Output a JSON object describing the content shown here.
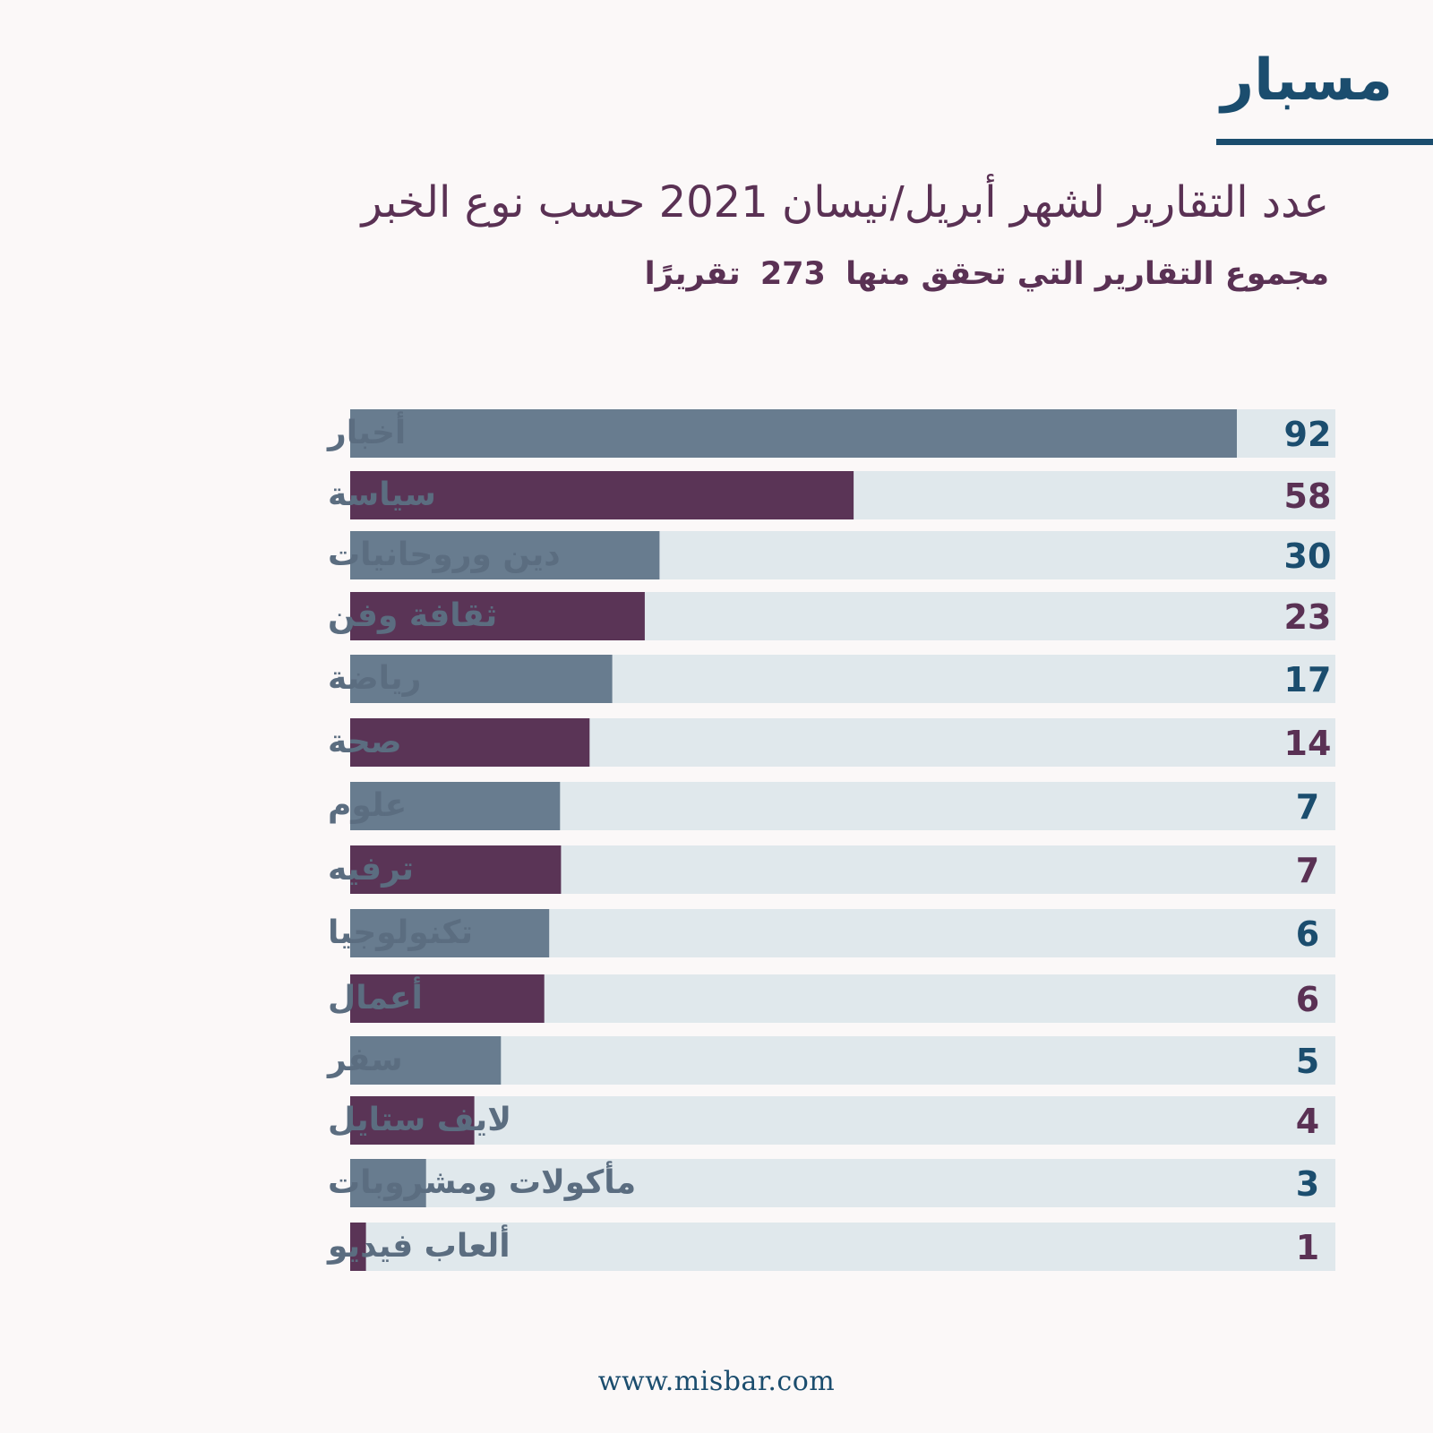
{
  "brand": {
    "logo_text": "مسبار",
    "color": "#1b4d6e"
  },
  "header": {
    "title": "عدد التقارير لشهر أبريل/نيسان 2021 حسب نوع الخبر",
    "subtitle_prefix": "مجموع التقارير التي تحقق منها",
    "subtitle_total": "273",
    "subtitle_suffix": "تقريرًا"
  },
  "footer": {
    "url": "www.misbar.com"
  },
  "colors": {
    "blue_gray": "#687c8f",
    "purple": "#5a3456",
    "track": "#e0e8ec",
    "label": "#5b6d80",
    "value_blue": "#1b4d6e",
    "value_purple": "#5a3154",
    "background": "#fbf8f8"
  },
  "chart_data": {
    "type": "bar",
    "orientation": "horizontal",
    "categories": [
      "أخبار",
      "سياسة",
      "دين وروحانيات",
      "ثقافة وفن",
      "رياضة",
      "صحة",
      "علوم",
      "ترفيه",
      "تكنولوجيا",
      "أعمال",
      "سفر",
      "لايف ستايل",
      "مأكولات ومشروبات",
      "ألعاب فيديو"
    ],
    "values": [
      92,
      58,
      30,
      23,
      17,
      14,
      7,
      7,
      6,
      6,
      5,
      4,
      3,
      1
    ],
    "value_labels": [
      "92",
      "58",
      "30",
      "23",
      "17",
      "14",
      "7",
      "7",
      "6",
      "6",
      "5",
      "4",
      "3",
      "1"
    ],
    "bar_fill_fraction": [
      0.9,
      0.511,
      0.314,
      0.299,
      0.266,
      0.243,
      0.213,
      0.214,
      0.202,
      0.197,
      0.153,
      0.126,
      0.077,
      0.016
    ],
    "bar_colors": [
      "blue_gray",
      "purple",
      "blue_gray",
      "purple",
      "blue_gray",
      "purple",
      "blue_gray",
      "purple",
      "blue_gray",
      "purple",
      "blue_gray",
      "purple",
      "blue_gray",
      "purple"
    ],
    "grid": false,
    "legend": "none"
  }
}
